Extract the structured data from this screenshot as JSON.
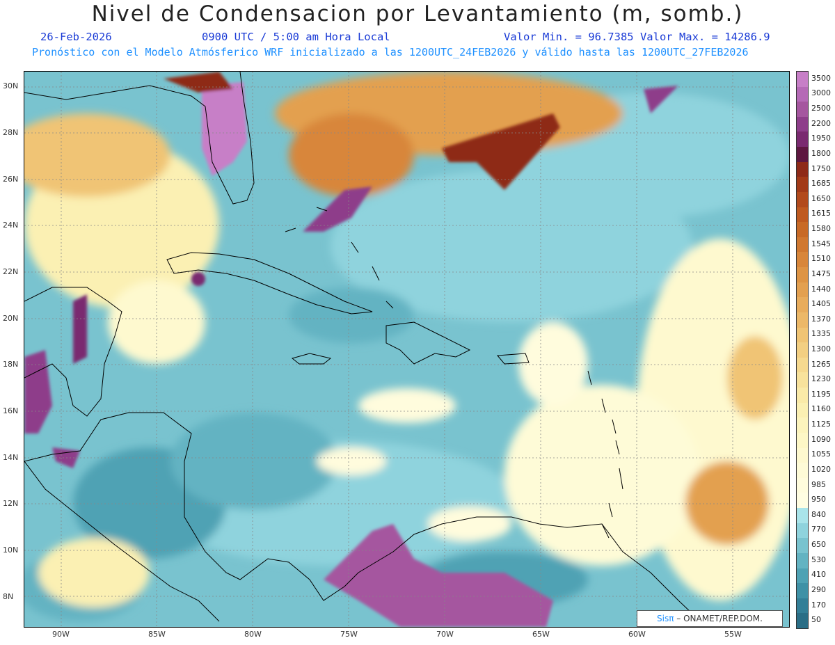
{
  "title": "Nivel de Condensacion por Levantamiento (m, somb.)",
  "header": {
    "date": "26-Feb-2026",
    "time": "0900 UTC / 5:00 am Hora Local",
    "min_max": "Valor Min. = 96.7385  Valor Max. = 14286.9",
    "forecast": "Pronóstico con el Modelo Atmósferico WRF inicializado a las 1200UTC_24FEB2026 y válido hasta las  1200UTC_27FEB2026"
  },
  "lat_labels": [
    "30N",
    "28N",
    "26N",
    "24N",
    "22N",
    "20N",
    "18N",
    "16N",
    "14N",
    "12N",
    "10N",
    "8N"
  ],
  "lon_labels": [
    "90W",
    "85W",
    "80W",
    "75W",
    "70W",
    "65W",
    "60W",
    "55W"
  ],
  "colorbar": {
    "labels": [
      "3500",
      "3000",
      "2500",
      "2200",
      "1950",
      "1800",
      "1750",
      "1685",
      "1650",
      "1615",
      "1580",
      "1545",
      "1510",
      "1475",
      "1440",
      "1405",
      "1370",
      "1335",
      "1300",
      "1265",
      "1230",
      "1195",
      "1160",
      "1125",
      "1090",
      "1055",
      "1020",
      "985",
      "950",
      "840",
      "770",
      "650",
      "530",
      "410",
      "290",
      "170",
      "50"
    ],
    "colors": [
      "#c77fc7",
      "#b56ab6",
      "#a5569f",
      "#8e3e8a",
      "#7a2a70",
      "#5e1740",
      "#8e2a18",
      "#a23a18",
      "#b24a1c",
      "#bf5a20",
      "#c86a26",
      "#d07830",
      "#d8863a",
      "#de9444",
      "#e3a050",
      "#e8ac5c",
      "#ecb868",
      "#f0c474",
      "#f3cf82",
      "#f6d98f",
      "#f8e29c",
      "#faeaa8",
      "#fbf0b3",
      "#fcf4bd",
      "#fdf7c6",
      "#fef9cf",
      "#fefbd7",
      "#fffcdd",
      "#fffde2",
      "#a9e4ea",
      "#8fd3dd",
      "#79c3cf",
      "#63b3c2",
      "#4fa2b4",
      "#3f91a6",
      "#337f97",
      "#2a6e86"
    ]
  },
  "credit": {
    "brand": "Sisπ",
    "org": " – ONAMET/REP.DOM."
  }
}
